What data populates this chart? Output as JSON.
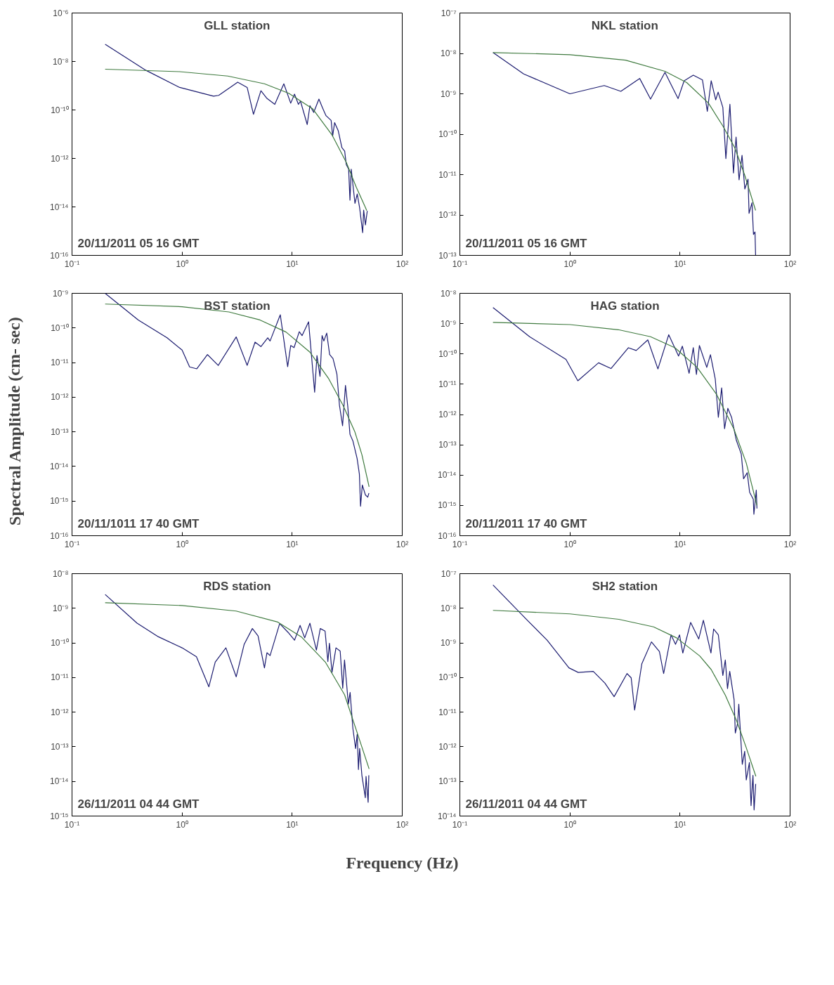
{
  "chart_data": [
    {
      "type": "line",
      "title": "GLL station",
      "annotations": [
        "20/11/2011 05 16 GMT"
      ],
      "log": "xy",
      "grid": false,
      "xlim": [
        0.1,
        100
      ],
      "xticks": [
        {
          "value": 0.1,
          "label": "10⁻¹"
        },
        {
          "value": 1,
          "label": "10⁰"
        },
        {
          "value": 10,
          "label": "10¹"
        },
        {
          "value": 100,
          "label": "10²"
        }
      ],
      "ylim": [
        1e-16,
        1e-06
      ],
      "yticks": [
        {
          "value": 1e-16,
          "label": "10⁻¹⁶"
        },
        {
          "value": 1e-14,
          "label": "10⁻¹⁴"
        },
        {
          "value": 1e-12,
          "label": "10⁻¹²"
        },
        {
          "value": 1e-10,
          "label": "10⁻¹⁰"
        },
        {
          "value": 1e-08,
          "label": "10⁻⁸"
        },
        {
          "value": 1e-06,
          "label": "10⁻⁶"
        }
      ],
      "series": [
        {
          "color": "#1c1c70",
          "x": [
            0.2,
            0.47,
            0.95,
            1.93,
            2.15,
            3.2,
            3.9,
            4.45,
            5.2,
            5.9,
            6.95,
            8.4,
            9.7,
            10.5,
            11.4,
            11.9,
            13.7,
            14.5,
            15.7,
            17.5,
            18.9,
            20.3,
            22.6,
            23.3,
            24.3,
            26.2,
            28.3,
            30.0,
            31.0,
            32.6,
            33.5,
            34.4,
            37.2,
            39.0,
            41.0,
            43.7,
            44.6,
            46.3,
            48.1
          ],
          "values": [
            5.1e-08,
            4.3e-09,
            8.5e-10,
            3.7e-10,
            4e-10,
            1.4e-09,
            8.5e-10,
            6.6e-11,
            6.2e-10,
            3e-10,
            1.7e-10,
            1.2e-09,
            1.9e-10,
            4.5e-10,
            1.7e-10,
            2.3e-10,
            2.5e-11,
            1.5e-10,
            7.9e-11,
            2.8e-10,
            1.2e-10,
            5.8e-11,
            3.7e-11,
            8.3e-12,
            3e-11,
            1.4e-11,
            2.8e-12,
            2e-12,
            5.6e-13,
            3.6e-13,
            1.9e-14,
            3.6e-13,
            1.4e-14,
            3.4e-14,
            9.3e-15,
            8.7e-16,
            7.4e-15,
            1.8e-15,
            6.8e-15
          ]
        },
        {
          "color": "#3f7a3f",
          "x": [
            0.2,
            0.95,
            2.6,
            5.6,
            9.3,
            15.4,
            23.1,
            31.0,
            38.3,
            45.6,
            47.6
          ],
          "values": [
            4.8e-09,
            3.8e-09,
            2.5e-09,
            1.2e-09,
            4.9e-10,
            1.1e-10,
            9.1e-12,
            6.9e-13,
            6.4e-14,
            1.1e-14,
            7e-15
          ]
        }
      ]
    },
    {
      "type": "line",
      "title": "NKL station",
      "annotations": [
        "20/11/2011 05 16 GMT"
      ],
      "log": "xy",
      "grid": false,
      "xlim": [
        0.1,
        100
      ],
      "xticks": [
        {
          "value": 0.1,
          "label": "10⁻¹"
        },
        {
          "value": 1,
          "label": "10⁰"
        },
        {
          "value": 10,
          "label": "10¹"
        },
        {
          "value": 100,
          "label": "10²"
        }
      ],
      "ylim": [
        1e-13,
        1e-07
      ],
      "yticks": [
        {
          "value": 1e-13,
          "label": "10⁻¹³"
        },
        {
          "value": 1e-12,
          "label": "10⁻¹²"
        },
        {
          "value": 1e-11,
          "label": "10⁻¹¹"
        },
        {
          "value": 1e-10,
          "label": "10⁻¹⁰"
        },
        {
          "value": 1e-09,
          "label": "10⁻⁹"
        },
        {
          "value": 1e-08,
          "label": "10⁻⁸"
        },
        {
          "value": 1e-07,
          "label": "10⁻⁷"
        }
      ],
      "series": [
        {
          "color": "#1c1c70",
          "x": [
            0.2,
            0.38,
            1.0,
            2.05,
            2.9,
            4.3,
            5.4,
            7.3,
            9.6,
            10.9,
            13.2,
            16.0,
            17.7,
            19.2,
            21.1,
            22.2,
            24.5,
            26.1,
            28.4,
            30.6,
            32.3,
            34.4,
            36.6,
            38.8,
            41.5,
            42.4,
            45.1,
            46.5,
            48.0,
            48.6
          ],
          "values": [
            1.05e-08,
            3.1e-09,
            1e-09,
            1.6e-09,
            1.15e-09,
            2.4e-09,
            7.4e-10,
            3.4e-09,
            7.6e-10,
            2.1e-09,
            2.9e-09,
            2.2e-09,
            3.7e-10,
            2.1e-09,
            7.1e-10,
            1.1e-09,
            4.6e-10,
            2.5e-11,
            5.5e-10,
            1.1e-11,
            8.5e-11,
            7.4e-12,
            3e-11,
            4.4e-12,
            7.7e-12,
            1.1e-12,
            2e-12,
            3.3e-13,
            3.8e-13,
            1e-13
          ]
        },
        {
          "color": "#3f7a3f",
          "x": [
            0.2,
            1.0,
            3.2,
            7.3,
            11.5,
            18.1,
            24.5,
            31.6,
            38.8,
            48.6
          ],
          "values": [
            1.05e-08,
            9.3e-09,
            6.8e-09,
            3.6e-09,
            1.9e-09,
            5.9e-10,
            1.6e-10,
            4.5e-11,
            9.5e-12,
            1.3e-12
          ]
        }
      ]
    },
    {
      "type": "line",
      "title": "BST station",
      "ylabel": "Spectral Amplitude (cm- sec)",
      "annotations": [
        "20/11/1011 17 40 GMT"
      ],
      "log": "xy",
      "grid": false,
      "xlim": [
        0.1,
        100
      ],
      "xticks": [
        {
          "value": 0.1,
          "label": "10⁻¹"
        },
        {
          "value": 1,
          "label": "10⁰"
        },
        {
          "value": 10,
          "label": "10¹"
        },
        {
          "value": 100,
          "label": "10²"
        }
      ],
      "ylim": [
        1e-16,
        1e-09
      ],
      "yticks": [
        {
          "value": 1e-16,
          "label": "10⁻¹⁶"
        },
        {
          "value": 1e-15,
          "label": "10⁻¹⁵"
        },
        {
          "value": 1e-14,
          "label": "10⁻¹⁴"
        },
        {
          "value": 1e-13,
          "label": "10⁻¹³"
        },
        {
          "value": 1e-12,
          "label": "10⁻¹²"
        },
        {
          "value": 1e-11,
          "label": "10⁻¹¹"
        },
        {
          "value": 1e-10,
          "label": "10⁻¹⁰"
        },
        {
          "value": 1e-09,
          "label": "10⁻⁹"
        }
      ],
      "series": [
        {
          "color": "#1c1c70",
          "x": [
            0.2,
            0.4,
            0.73,
            1.0,
            1.17,
            1.36,
            1.7,
            2.13,
            3.1,
            3.9,
            4.6,
            5.2,
            6.0,
            6.3,
            7.8,
            9.1,
            9.7,
            10.4,
            11.6,
            12.3,
            14.1,
            16.0,
            16.8,
            17.9,
            18.7,
            19.4,
            20.6,
            21.9,
            23.5,
            25.5,
            26.9,
            28.7,
            30.5,
            32.0,
            33.5,
            35.6,
            38.9,
            40.8,
            41.8,
            43.4,
            46.3,
            48.6,
            49.8
          ],
          "values": [
            1e-09,
            1.7e-10,
            5.2e-11,
            2.3e-11,
            7.5e-12,
            6.6e-12,
            1.7e-11,
            8.3e-12,
            5.5e-11,
            8.3e-12,
            3.9e-11,
            2.9e-11,
            5.2e-11,
            4.2e-11,
            2.4e-10,
            7.6e-12,
            3.1e-11,
            2.7e-11,
            7.8e-11,
            6e-11,
            1.5e-10,
            1.4e-12,
            1.6e-11,
            4e-12,
            6e-11,
            4.2e-11,
            7.1e-11,
            1.7e-11,
            1.3e-11,
            4.6e-12,
            5.8e-13,
            1.5e-13,
            2.2e-12,
            5.4e-13,
            8.5e-14,
            5.5e-14,
            1.7e-14,
            6e-15,
            7.1e-16,
            2.9e-15,
            1.5e-15,
            1.3e-15,
            1.7e-15
          ]
        },
        {
          "color": "#3f7a3f",
          "x": [
            0.2,
            1.0,
            2.66,
            5.1,
            8.8,
            14.5,
            21.5,
            29.0,
            37.2,
            43.0,
            50
          ],
          "values": [
            4.9e-10,
            4.1e-10,
            2.9e-10,
            1.7e-10,
            7.6e-11,
            2e-11,
            3.4e-12,
            5.8e-13,
            9.8e-14,
            2.2e-14,
            2.6e-15
          ]
        }
      ]
    },
    {
      "type": "line",
      "title": "HAG station",
      "annotations": [
        "20/11/2011 17 40 GMT"
      ],
      "log": "xy",
      "grid": false,
      "xlim": [
        0.1,
        100
      ],
      "xticks": [
        {
          "value": 0.1,
          "label": "10⁻¹"
        },
        {
          "value": 1,
          "label": "10⁰"
        },
        {
          "value": 10,
          "label": "10¹"
        },
        {
          "value": 100,
          "label": "10²"
        }
      ],
      "ylim": [
        1e-16,
        1e-08
      ],
      "yticks": [
        {
          "value": 1e-16,
          "label": "10⁻¹⁶"
        },
        {
          "value": 1e-15,
          "label": "10⁻¹⁵"
        },
        {
          "value": 1e-14,
          "label": "10⁻¹⁴"
        },
        {
          "value": 1e-13,
          "label": "10⁻¹³"
        },
        {
          "value": 1e-12,
          "label": "10⁻¹²"
        },
        {
          "value": 1e-11,
          "label": "10⁻¹¹"
        },
        {
          "value": 1e-10,
          "label": "10⁻¹⁰"
        },
        {
          "value": 1e-09,
          "label": "10⁻⁹"
        },
        {
          "value": 1e-08,
          "label": "10⁻⁸"
        }
      ],
      "series": [
        {
          "color": "#1c1c70",
          "x": [
            0.2,
            0.43,
            0.92,
            1.18,
            1.82,
            2.36,
            3.4,
            4.0,
            5.1,
            6.3,
            7.9,
            9.7,
            10.5,
            12.1,
            13.2,
            14.1,
            15.0,
            17.5,
            18.9,
            20.9,
            22.3,
            23.9,
            25.4,
            27.2,
            29.4,
            32.5,
            36.0,
            37.8,
            40.8,
            42.9,
            46.3,
            46.9,
            49.3,
            50
          ],
          "values": [
            3.4e-09,
            3.7e-10,
            6.6e-11,
            1.3e-11,
            5.1e-11,
            3.3e-11,
            1.6e-10,
            1.3e-10,
            2.9e-10,
            3.2e-11,
            4.3e-10,
            8.5e-11,
            1.8e-10,
            2.3e-11,
            1.6e-10,
            2.1e-11,
            1.9e-10,
            3.6e-11,
            9.4e-11,
            1.5e-11,
            8.1e-13,
            7.6e-12,
            3.4e-13,
            1.6e-12,
            8.1e-13,
            1.4e-13,
            5e-14,
            7.6e-15,
            1.2e-14,
            2.7e-15,
            1.6e-15,
            5.1e-16,
            3.2e-15,
            7.9e-16
          ]
        },
        {
          "color": "#3f7a3f",
          "x": [
            0.2,
            1.0,
            2.75,
            5.4,
            9.0,
            14.3,
            21.5,
            30.8,
            40.0,
            50
          ],
          "values": [
            1.1e-09,
            9.3e-10,
            6.3e-10,
            3.7e-10,
            1.6e-10,
            3.6e-11,
            4.6e-12,
            3.4e-13,
            2.5e-14,
            1e-15
          ]
        }
      ]
    },
    {
      "type": "line",
      "title": "RDS station",
      "xlabel": "Frequency (Hz)",
      "annotations": [
        "26/11/2011 04 44 GMT"
      ],
      "log": "xy",
      "grid": false,
      "xlim": [
        0.1,
        100
      ],
      "xticks": [
        {
          "value": 0.1,
          "label": "10⁻¹"
        },
        {
          "value": 1,
          "label": "10⁰"
        },
        {
          "value": 10,
          "label": "10¹"
        },
        {
          "value": 100,
          "label": "10²"
        }
      ],
      "ylim": [
        1e-15,
        1e-08
      ],
      "yticks": [
        {
          "value": 1e-15,
          "label": "10⁻¹⁵"
        },
        {
          "value": 1e-14,
          "label": "10⁻¹⁴"
        },
        {
          "value": 1e-13,
          "label": "10⁻¹³"
        },
        {
          "value": 1e-12,
          "label": "10⁻¹²"
        },
        {
          "value": 1e-11,
          "label": "10⁻¹¹"
        },
        {
          "value": 1e-10,
          "label": "10⁻¹⁰"
        },
        {
          "value": 1e-09,
          "label": "10⁻⁹"
        },
        {
          "value": 1e-08,
          "label": "10⁻⁸"
        }
      ],
      "series": [
        {
          "color": "#1c1c70",
          "x": [
            0.2,
            0.39,
            0.61,
            1.0,
            1.35,
            1.75,
            2.0,
            2.5,
            3.1,
            3.66,
            4.35,
            4.9,
            5.6,
            5.9,
            6.3,
            7.7,
            9.2,
            10.5,
            11.8,
            13.0,
            14.5,
            16.6,
            18.0,
            19.9,
            21.1,
            21.8,
            23.0,
            25.0,
            27.3,
            28.8,
            29.9,
            32.4,
            33.6,
            35.6,
            37.7,
            39.0,
            40.0,
            41.0,
            43.0,
            46.2,
            46.9,
            49.0,
            49.7
          ],
          "values": [
            2.5e-09,
            3.7e-10,
            1.5e-10,
            7.2e-11,
            4e-11,
            5.4e-12,
            2.8e-11,
            7.2e-11,
            1.05e-11,
            9e-11,
            2.6e-10,
            1.6e-10,
            1.9e-11,
            5.2e-11,
            4.3e-11,
            3.6e-10,
            2e-10,
            1.2e-10,
            3.2e-10,
            1.4e-10,
            3.7e-10,
            6.2e-11,
            2.6e-10,
            2.2e-10,
            2.9e-11,
            9.8e-11,
            1.4e-11,
            7.2e-11,
            5.8e-11,
            4.9e-12,
            3.2e-11,
            1.7e-12,
            3.7e-12,
            3.4e-13,
            8.9e-14,
            2.3e-13,
            2.2e-14,
            8.9e-14,
            1.5e-14,
            3.4e-15,
            1.4e-14,
            2.5e-15,
            1.5e-14
          ]
        },
        {
          "color": "#3f7a3f",
          "x": [
            0.2,
            1.0,
            3.1,
            7.4,
            12.1,
            20,
            29.9,
            38.3,
            50
          ],
          "values": [
            1.45e-09,
            1.2e-09,
            8.3e-10,
            4e-10,
            1.5e-10,
            2.8e-11,
            3.2e-12,
            3e-13,
            2.3e-14
          ]
        }
      ]
    },
    {
      "type": "line",
      "title": "SH2 station",
      "annotations": [
        "26/11/2011 04 44 GMT"
      ],
      "log": "xy",
      "grid": false,
      "xlim": [
        0.1,
        100
      ],
      "xticks": [
        {
          "value": 0.1,
          "label": "10⁻¹"
        },
        {
          "value": 1,
          "label": "10⁰"
        },
        {
          "value": 10,
          "label": "10¹"
        },
        {
          "value": 100,
          "label": "10²"
        }
      ],
      "ylim": [
        1e-14,
        1e-07
      ],
      "yticks": [
        {
          "value": 1e-14,
          "label": "10⁻¹⁴"
        },
        {
          "value": 1e-13,
          "label": "10⁻¹³"
        },
        {
          "value": 1e-12,
          "label": "10⁻¹²"
        },
        {
          "value": 1e-11,
          "label": "10⁻¹¹"
        },
        {
          "value": 1e-10,
          "label": "10⁻¹⁰"
        },
        {
          "value": 1e-09,
          "label": "10⁻⁹"
        },
        {
          "value": 1e-08,
          "label": "10⁻⁸"
        },
        {
          "value": 1e-07,
          "label": "10⁻⁷"
        }
      ],
      "series": [
        {
          "color": "#1c1c70",
          "x": [
            0.2,
            0.4,
            0.62,
            0.98,
            1.19,
            1.63,
            2.08,
            2.52,
            3.3,
            3.6,
            3.87,
            4.5,
            5.5,
            6.5,
            7.1,
            8.3,
            9.1,
            9.9,
            10.6,
            12.5,
            14.8,
            16.3,
            19.1,
            20.2,
            22.3,
            24.5,
            25.8,
            27.0,
            28.3,
            31.0,
            31.8,
            33.4,
            34.2,
            36.8,
            38.7,
            40.0,
            42.7,
            44.2,
            46.0,
            47.1,
            48.7
          ],
          "values": [
            4.7e-08,
            4.9e-09,
            1.2e-09,
            1.9e-10,
            1.4e-10,
            1.5e-10,
            6.9e-11,
            2.8e-11,
            1.3e-10,
            9.8e-11,
            1.15e-11,
            2.5e-10,
            1.07e-09,
            5.6e-10,
            1.3e-10,
            1.7e-09,
            9.1e-10,
            1.7e-09,
            5.1e-10,
            3.9e-09,
            1.3e-09,
            4.5e-09,
            5.1e-10,
            2.5e-09,
            1.7e-09,
            1.15e-10,
            3.2e-10,
            4.8e-11,
            1.5e-10,
            2.3e-11,
            2.5e-12,
            4.8e-12,
            1.7e-11,
            3.1e-13,
            7.4e-13,
            1.1e-13,
            3.5e-13,
            2e-14,
            1.5e-13,
            1.5e-14,
            8.5e-14
          ]
        },
        {
          "color": "#3f7a3f",
          "x": [
            0.2,
            1.0,
            2.78,
            5.75,
            9.3,
            15.1,
            19.2,
            25.8,
            32.8,
            39.8,
            48.9
          ],
          "values": [
            8.7e-09,
            6.9e-09,
            4.8e-09,
            2.9e-09,
            1.4e-09,
            4.2e-10,
            1.7e-10,
            3.1e-11,
            5.5e-12,
            9.8e-13,
            1.4e-13
          ]
        }
      ]
    }
  ]
}
